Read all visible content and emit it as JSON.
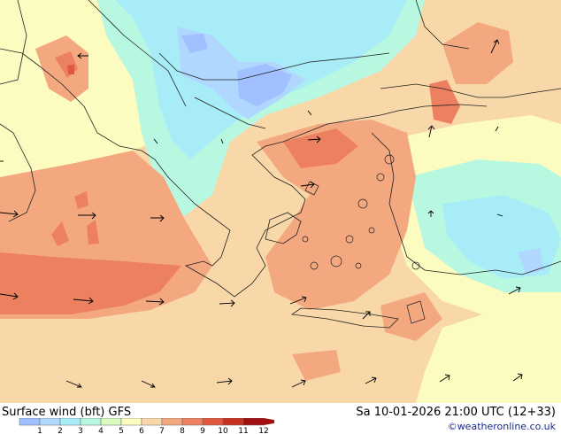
{
  "title": "Surface wind (bft)  GFS",
  "datetime": "Sa 10-01-2026 21:00 UTC (12+33)",
  "credit": "©weatheronline.co.uk",
  "scale": {
    "labels": [
      "1",
      "2",
      "3",
      "4",
      "5",
      "6",
      "7",
      "8",
      "9",
      "10",
      "11",
      "12"
    ],
    "colors": [
      "#a0c0ff",
      "#b0d8ff",
      "#a8ecf8",
      "#b8f8e0",
      "#d8fcc0",
      "#fcfcc0",
      "#f8d8a8",
      "#f4a880",
      "#ec8060",
      "#e05840",
      "#c83020",
      "#a01010"
    ]
  }
}
